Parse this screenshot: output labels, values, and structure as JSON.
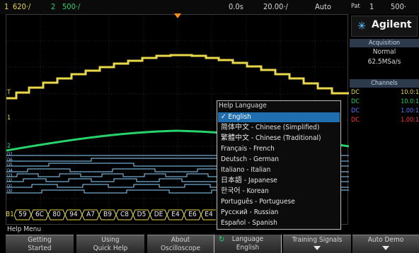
{
  "top_bar": {
    "ch1_num": "1",
    "ch1_scale": "620‧/",
    "ch2_num": "2",
    "ch2_scale": "500‧/",
    "time_delay": "0.0s",
    "time_scale": "20.00‧/",
    "trigger_mode": "Auto",
    "pat_label": "Pat",
    "pat_num": "1",
    "pat_value": "500‧"
  },
  "brand": {
    "name": "Agilent"
  },
  "acquisition": {
    "header": "Acquisition",
    "mode": "Normal",
    "rate": "62.5MSa/s"
  },
  "channels": {
    "header": "Channels",
    "rows": [
      {
        "coupling": "DC",
        "value": "10.0:1",
        "color": "#e8d84a"
      },
      {
        "coupling": "DC",
        "value": "10.0:1",
        "color": "#27d36b"
      },
      {
        "coupling": "DC",
        "value": "1.00:1",
        "color": "#5a7dff"
      },
      {
        "coupling": "DC",
        "value": "1.00:1",
        "color": "#ff3a3a"
      }
    ]
  },
  "markers": {
    "t": "T",
    "ch1": "1",
    "ch2": "2"
  },
  "digital_labels": [
    "D7",
    "D6",
    "D5",
    "D4",
    "D3",
    "D2",
    "D1",
    "D0"
  ],
  "bus": {
    "label": "B1",
    "values": [
      "59",
      "6C",
      "80",
      "94",
      "A7",
      "B9",
      "C8",
      "D5",
      "DE",
      "E4",
      "E6",
      "E4"
    ]
  },
  "help_language_menu": {
    "title": "Help Language",
    "selected_index": 0,
    "items": [
      "✓ English",
      "简体中文 - Chinese (Simplified)",
      "繁體中文 - Chinese (Traditional)",
      "Français - French",
      "Deutsch - German",
      "Italiano - Italian",
      "日本語 - Japanese",
      "한국어 - Korean",
      "Português - Portuguese",
      "Русский - Russian",
      "Español - Spanish"
    ]
  },
  "help_menu": {
    "label": "Help Menu"
  },
  "softkeys": [
    {
      "line1": "Getting",
      "line2": "Started"
    },
    {
      "line1": "Using",
      "line2": "Quick Help"
    },
    {
      "line1": "About",
      "line2": "Oscilloscope"
    },
    {
      "line1": "Language",
      "line2": "English",
      "icon": "rotate-knob-icon"
    },
    {
      "line1": "Training Signals",
      "line2": ""
    },
    {
      "line1": "Auto Demo",
      "line2": ""
    }
  ],
  "colors": {
    "ch1": "#e8d84a",
    "ch2": "#27d36b",
    "digital": "#8fd4ff",
    "select": "#1f6fb0"
  }
}
